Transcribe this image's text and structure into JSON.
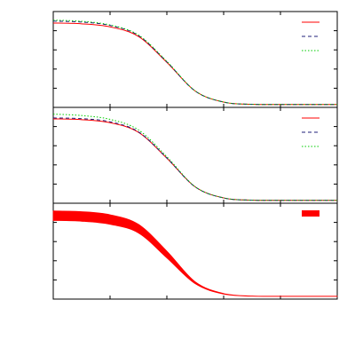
{
  "chart_data": [
    {
      "type": "line",
      "grid": false,
      "legend": "top-right",
      "legend_labels": [
        "",
        "",
        ""
      ],
      "x": [
        0,
        10,
        20,
        30,
        40,
        50,
        60,
        70,
        80,
        90,
        100
      ],
      "xlim": [
        0,
        100
      ],
      "ylim": [
        0,
        1
      ],
      "series": [
        {
          "style": "solid",
          "color": "#ff0000",
          "values": [
            0.88,
            0.872,
            0.84,
            0.74,
            0.47,
            0.17,
            0.055,
            0.032,
            0.03,
            0.03,
            0.03
          ]
        },
        {
          "style": "dashed",
          "color": "#1f1f7a",
          "values": [
            0.9,
            0.89,
            0.855,
            0.75,
            0.475,
            0.17,
            0.055,
            0.032,
            0.03,
            0.03,
            0.03
          ]
        },
        {
          "style": "dotted",
          "color": "#00cc00",
          "values": [
            0.91,
            0.898,
            0.86,
            0.755,
            0.48,
            0.172,
            0.056,
            0.032,
            0.03,
            0.03,
            0.03
          ]
        }
      ]
    },
    {
      "type": "line",
      "grid": false,
      "legend": "top-right",
      "legend_labels": [
        "",
        "",
        ""
      ],
      "x": [
        0,
        10,
        20,
        30,
        40,
        50,
        60,
        70,
        80,
        90,
        100
      ],
      "xlim": [
        0,
        100
      ],
      "ylim": [
        0,
        1
      ],
      "series": [
        {
          "style": "solid",
          "color": "#ff0000",
          "values": [
            0.88,
            0.872,
            0.84,
            0.74,
            0.47,
            0.17,
            0.055,
            0.032,
            0.03,
            0.03,
            0.03
          ]
        },
        {
          "style": "dashed",
          "color": "#1f1f7a",
          "values": [
            0.89,
            0.882,
            0.85,
            0.745,
            0.472,
            0.17,
            0.055,
            0.032,
            0.03,
            0.03,
            0.03
          ]
        },
        {
          "style": "dotted",
          "color": "#00cc00",
          "values": [
            0.93,
            0.915,
            0.875,
            0.765,
            0.485,
            0.172,
            0.056,
            0.032,
            0.03,
            0.03,
            0.03
          ]
        }
      ]
    },
    {
      "type": "area",
      "grid": false,
      "legend": "top-right",
      "legend_labels": [
        ""
      ],
      "x": [
        0,
        10,
        20,
        30,
        40,
        50,
        60,
        70,
        80,
        90,
        100
      ],
      "xlim": [
        0,
        100
      ],
      "ylim": [
        0,
        1
      ],
      "series": [
        {
          "style": "band",
          "color": "#ff0000",
          "upper": [
            0.92,
            0.912,
            0.88,
            0.78,
            0.5,
            0.18,
            0.058,
            0.032,
            0.03,
            0.03,
            0.03
          ],
          "lower": [
            0.82,
            0.812,
            0.78,
            0.69,
            0.43,
            0.16,
            0.052,
            0.03,
            0.028,
            0.028,
            0.028
          ]
        }
      ]
    }
  ]
}
